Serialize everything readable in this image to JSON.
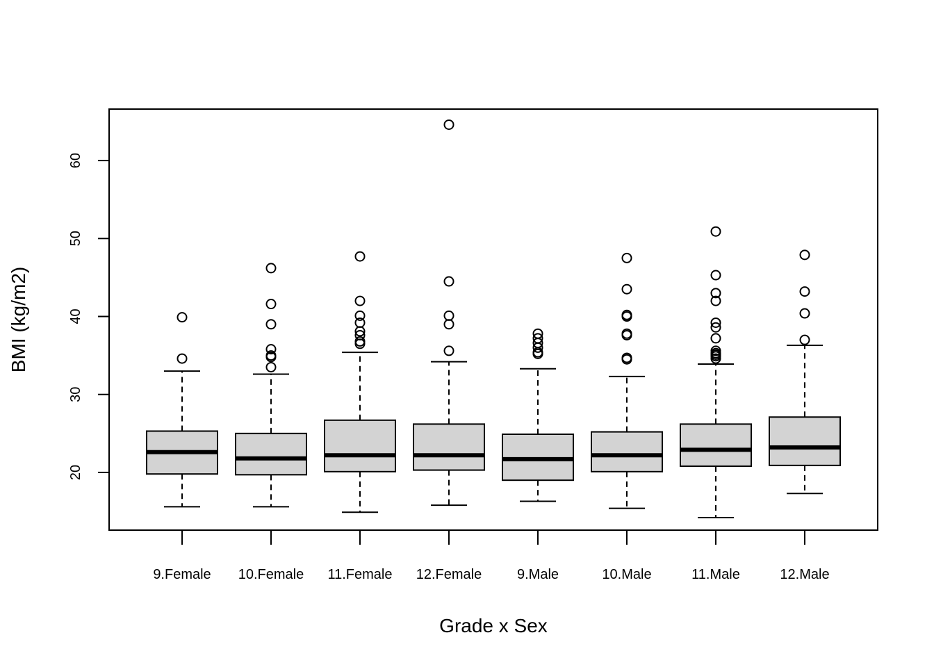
{
  "chart_data": {
    "type": "boxplot",
    "title": "",
    "xlabel": "Grade x Sex",
    "ylabel": "BMI (kg/m2)",
    "ylim": [
      12.6,
      66.6
    ],
    "yticks": [
      20,
      30,
      40,
      50,
      60
    ],
    "categories": [
      "9.Female",
      "10.Female",
      "11.Female",
      "12.Female",
      "9.Male",
      "10.Male",
      "11.Male",
      "12.Male"
    ],
    "boxes": [
      {
        "whisker_low": 15.6,
        "q1": 19.8,
        "median": 22.6,
        "q3": 25.3,
        "whisker_high": 33.0,
        "outliers": [
          34.6,
          39.9
        ]
      },
      {
        "whisker_low": 15.6,
        "q1": 19.7,
        "median": 21.8,
        "q3": 25.0,
        "whisker_high": 32.6,
        "outliers": [
          33.5,
          34.8,
          35.0,
          35.8,
          39.0,
          41.6,
          46.2
        ]
      },
      {
        "whisker_low": 14.9,
        "q1": 20.1,
        "median": 22.2,
        "q3": 26.7,
        "whisker_high": 35.4,
        "outliers": [
          36.5,
          36.8,
          37.6,
          38.1,
          39.2,
          40.1,
          42.0,
          47.7
        ]
      },
      {
        "whisker_low": 15.8,
        "q1": 20.3,
        "median": 22.2,
        "q3": 26.2,
        "whisker_high": 34.2,
        "outliers": [
          35.6,
          39.0,
          40.1,
          44.5,
          64.6
        ]
      },
      {
        "whisker_low": 16.3,
        "q1": 19.0,
        "median": 21.7,
        "q3": 24.9,
        "whisker_high": 33.3,
        "outliers": [
          35.2,
          35.4,
          36.0,
          36.6,
          37.2,
          37.8
        ]
      },
      {
        "whisker_low": 15.4,
        "q1": 20.1,
        "median": 22.2,
        "q3": 25.2,
        "whisker_high": 32.3,
        "outliers": [
          34.5,
          34.7,
          37.6,
          37.8,
          40.0,
          40.2,
          43.5,
          47.5
        ]
      },
      {
        "whisker_low": 14.2,
        "q1": 20.8,
        "median": 22.9,
        "q3": 26.2,
        "whisker_high": 33.9,
        "outliers": [
          34.6,
          34.9,
          35.1,
          35.3,
          35.6,
          37.2,
          38.6,
          39.2,
          42.0,
          43.0,
          45.3,
          50.9
        ]
      },
      {
        "whisker_low": 17.3,
        "q1": 20.9,
        "median": 23.2,
        "q3": 27.1,
        "whisker_high": 36.3,
        "outliers": [
          37.0,
          40.4,
          43.2,
          47.9
        ]
      }
    ],
    "colors": {
      "box_fill": "#d3d3d3",
      "stroke": "#000000",
      "background": "#ffffff"
    }
  }
}
